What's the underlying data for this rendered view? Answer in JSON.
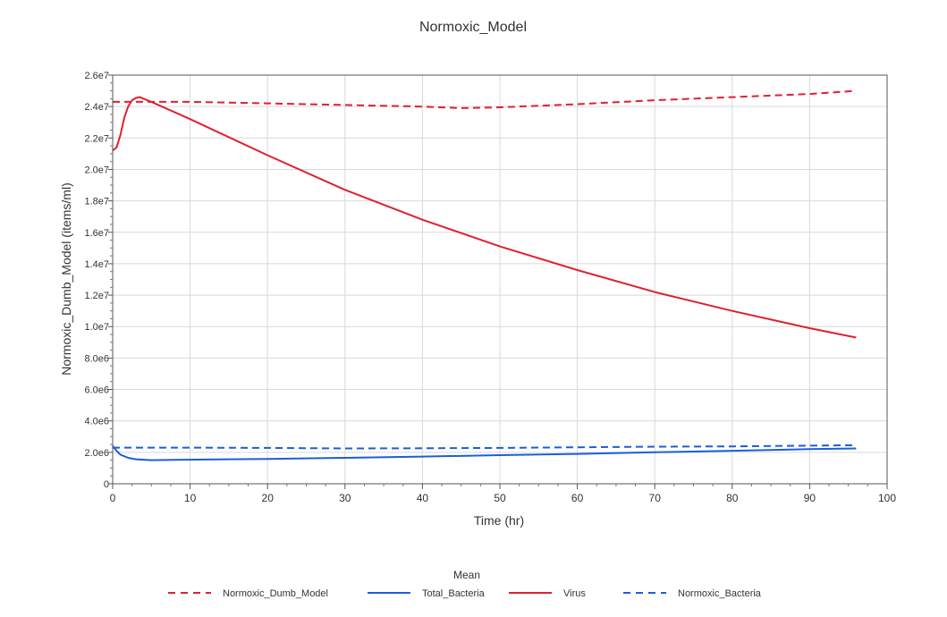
{
  "chart_data": {
    "type": "line",
    "title": "Normoxic_Model",
    "xlabel": "Time (hr)",
    "ylabel": "Normoxic_Dumb_Model (items/ml)",
    "xlim": [
      0,
      100
    ],
    "ylim": [
      0,
      26000000
    ],
    "x_ticks": [
      0,
      10,
      20,
      30,
      40,
      50,
      60,
      70,
      80,
      90,
      100
    ],
    "x_tick_labels": [
      "0",
      "10",
      "20",
      "30",
      "40",
      "50",
      "60",
      "70",
      "80",
      "90",
      "100"
    ],
    "y_ticks": [
      0,
      2000000,
      4000000,
      6000000,
      8000000,
      10000000,
      12000000,
      14000000,
      16000000,
      18000000,
      20000000,
      22000000,
      24000000,
      26000000
    ],
    "y_tick_labels": [
      "0",
      "2.0e6",
      "4.0e6",
      "6.0e6",
      "8.0e6",
      "1.0e7",
      "1.2e7",
      "1.4e7",
      "1.6e7",
      "1.8e7",
      "2.0e7",
      "2.2e7",
      "2.4e7",
      "2.6e7"
    ],
    "grid": true,
    "legend_title": "Mean",
    "legend_position": "bottom",
    "series": [
      {
        "name": "Normoxic_Dumb_Model",
        "color": "#e02030",
        "dash": true,
        "points": [
          [
            0,
            24300000
          ],
          [
            10,
            24300000
          ],
          [
            20,
            24200000
          ],
          [
            30,
            24100000
          ],
          [
            40,
            24000000
          ],
          [
            45,
            23900000
          ],
          [
            50,
            23950000
          ],
          [
            60,
            24150000
          ],
          [
            70,
            24400000
          ],
          [
            80,
            24600000
          ],
          [
            90,
            24800000
          ],
          [
            96,
            25000000
          ]
        ]
      },
      {
        "name": "Total_Bacteria",
        "color": "#1a5fd8",
        "dash": false,
        "points": [
          [
            0,
            2400000
          ],
          [
            0.5,
            2100000
          ],
          [
            1,
            1850000
          ],
          [
            2,
            1650000
          ],
          [
            3,
            1560000
          ],
          [
            5,
            1500000
          ],
          [
            8,
            1520000
          ],
          [
            20,
            1580000
          ],
          [
            30,
            1650000
          ],
          [
            40,
            1730000
          ],
          [
            50,
            1820000
          ],
          [
            60,
            1900000
          ],
          [
            70,
            2000000
          ],
          [
            80,
            2100000
          ],
          [
            90,
            2200000
          ],
          [
            96,
            2250000
          ]
        ]
      },
      {
        "name": "Virus",
        "color": "#e02030",
        "dash": false,
        "points": [
          [
            0,
            21200000
          ],
          [
            0.5,
            21400000
          ],
          [
            1,
            22200000
          ],
          [
            1.5,
            23300000
          ],
          [
            2,
            24000000
          ],
          [
            2.5,
            24400000
          ],
          [
            3,
            24550000
          ],
          [
            3.5,
            24600000
          ],
          [
            4,
            24500000
          ],
          [
            5,
            24300000
          ],
          [
            10,
            23200000
          ],
          [
            20,
            20900000
          ],
          [
            30,
            18700000
          ],
          [
            40,
            16800000
          ],
          [
            50,
            15100000
          ],
          [
            60,
            13600000
          ],
          [
            70,
            12200000
          ],
          [
            80,
            11000000
          ],
          [
            90,
            9900000
          ],
          [
            96,
            9300000
          ]
        ]
      },
      {
        "name": "Normoxic_Bacteria",
        "color": "#1a5fd8",
        "dash": true,
        "points": [
          [
            0,
            2300000
          ],
          [
            10,
            2300000
          ],
          [
            20,
            2280000
          ],
          [
            30,
            2250000
          ],
          [
            40,
            2260000
          ],
          [
            50,
            2280000
          ],
          [
            60,
            2320000
          ],
          [
            70,
            2360000
          ],
          [
            80,
            2380000
          ],
          [
            88,
            2420000
          ],
          [
            96,
            2450000
          ]
        ]
      }
    ]
  }
}
